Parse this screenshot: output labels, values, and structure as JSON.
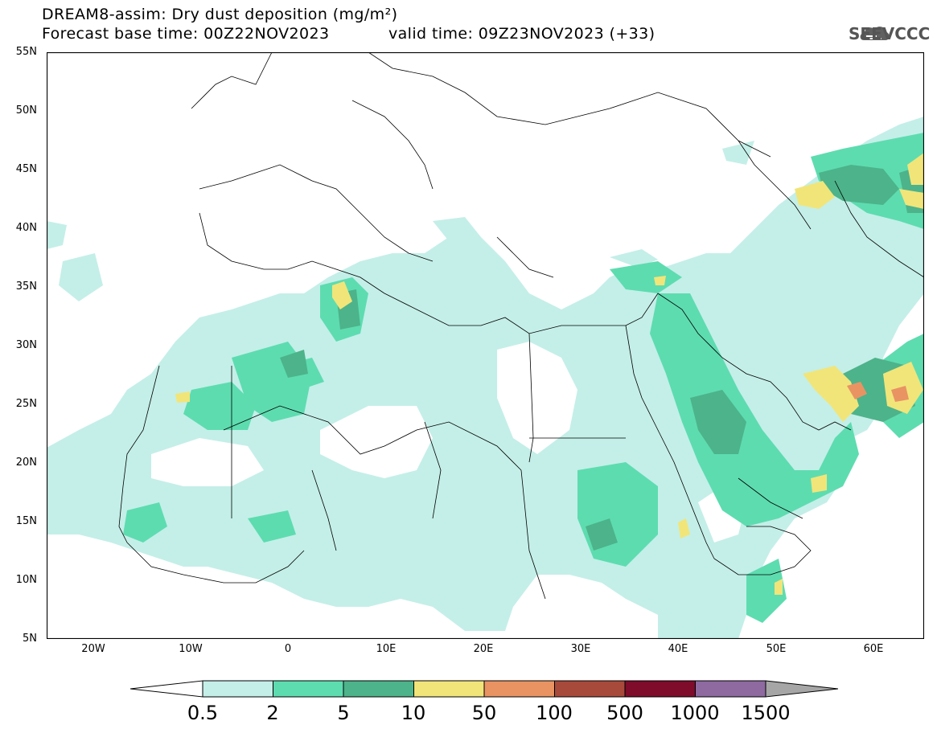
{
  "title": {
    "line1": "DREAM8-assim: Dry dust deposition (mg/m²)",
    "line2_left": "Forecast base time: 00Z22NOV2023",
    "line2_right": "valid time: 09Z23NOV2023 (+33)"
  },
  "logo": {
    "text": "SEEVCCC",
    "icon": "cloud-icon"
  },
  "map": {
    "lon_range": [
      -25,
      65
    ],
    "lat_range": [
      5,
      55
    ],
    "lat_ticks": [
      "55N",
      "50N",
      "45N",
      "40N",
      "35N",
      "30N",
      "25N",
      "20N",
      "15N",
      "10N",
      "5N"
    ],
    "lon_ticks": [
      "20W",
      "10W",
      "0",
      "10E",
      "20E",
      "30E",
      "40E",
      "50E",
      "60E"
    ]
  },
  "legend": {
    "labels": [
      "0.5",
      "2",
      "5",
      "10",
      "50",
      "100",
      "500",
      "1000",
      "1500"
    ],
    "colors": [
      "#c4efe8",
      "#5ddcb0",
      "#4db38a",
      "#f1e57a",
      "#e99363",
      "#a84a3b",
      "#7e0c2a",
      "#8e6aa0",
      "#a6a6a6"
    ]
  }
}
